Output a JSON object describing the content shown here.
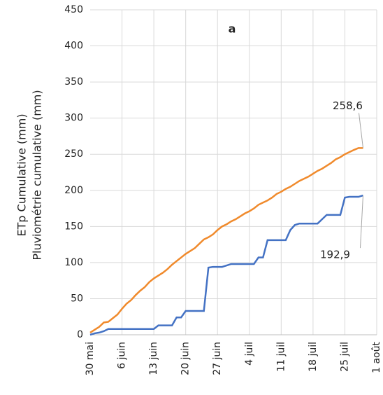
{
  "chart_data": {
    "type": "line",
    "title": "a",
    "ylabel": [
      "ETp Cumulative (mm)",
      "Pluviométrie cumulative (mm)"
    ],
    "categories": [
      "30 mai",
      null,
      null,
      null,
      null,
      null,
      null,
      "6 juin",
      null,
      null,
      null,
      null,
      null,
      null,
      "13 juin",
      null,
      null,
      null,
      null,
      null,
      null,
      "20 juin",
      null,
      null,
      null,
      null,
      null,
      null,
      "27 juin",
      null,
      null,
      null,
      null,
      null,
      null,
      "4 juil",
      null,
      null,
      null,
      null,
      null,
      null,
      "11 juil",
      null,
      null,
      null,
      null,
      null,
      null,
      "18 juil",
      null,
      null,
      null,
      null,
      null,
      null,
      "25 juil",
      null,
      null,
      null,
      null,
      null,
      null,
      "1 août"
    ],
    "series": [
      {
        "color": "#f08a2c",
        "values": [
          3,
          7,
          11,
          17,
          18,
          23,
          28,
          36,
          43,
          48,
          55,
          61,
          66,
          73,
          78,
          82,
          86,
          91,
          97,
          102,
          107,
          112,
          116,
          120,
          126,
          132,
          135,
          139,
          145,
          150,
          153,
          157,
          160,
          164,
          168,
          171,
          175,
          180,
          183,
          186,
          190,
          195,
          198,
          202,
          205,
          209,
          213,
          216,
          219,
          223,
          227,
          230,
          234,
          238,
          243,
          246,
          250,
          253,
          256,
          258.6,
          258.6,
          null,
          null,
          null
        ],
        "value_labels": [
          null,
          null,
          null,
          null,
          null,
          null,
          null,
          null,
          null,
          null,
          null,
          null,
          null,
          null,
          null,
          null,
          null,
          null,
          null,
          null,
          null,
          null,
          null,
          null,
          null,
          null,
          null,
          null,
          null,
          null,
          null,
          null,
          null,
          null,
          null,
          null,
          null,
          null,
          null,
          null,
          null,
          null,
          null,
          null,
          null,
          null,
          null,
          null,
          null,
          null,
          null,
          null,
          null,
          null,
          null,
          null,
          null,
          null,
          null,
          null,
          "258,6",
          null,
          null,
          null
        ]
      },
      {
        "color": "#4472c4",
        "values": [
          0,
          2,
          3,
          5,
          8,
          8,
          8,
          8,
          8,
          8,
          8,
          8,
          8,
          8,
          8,
          13,
          13,
          13,
          13,
          24,
          24,
          33,
          33,
          33,
          33,
          33,
          93,
          94,
          94,
          94,
          96,
          98,
          98,
          98,
          98,
          98,
          98,
          107,
          107,
          131,
          131,
          131,
          131,
          131,
          145,
          152,
          154,
          154,
          154,
          154,
          154,
          160,
          166,
          166,
          166,
          166,
          190,
          191,
          191,
          191,
          192.9,
          null,
          null,
          null
        ],
        "value_labels": [
          null,
          null,
          null,
          null,
          null,
          null,
          null,
          null,
          null,
          null,
          null,
          null,
          null,
          null,
          null,
          null,
          null,
          null,
          null,
          null,
          null,
          null,
          null,
          null,
          null,
          null,
          null,
          null,
          null,
          null,
          null,
          null,
          null,
          null,
          null,
          null,
          null,
          null,
          null,
          null,
          null,
          null,
          null,
          null,
          null,
          null,
          null,
          null,
          null,
          null,
          null,
          null,
          null,
          null,
          null,
          null,
          null,
          null,
          null,
          null,
          "192,9",
          null,
          null,
          null
        ]
      }
    ],
    "ylim": [
      0,
      450
    ],
    "yticks": [
      0,
      50,
      100,
      150,
      200,
      250,
      300,
      350,
      400,
      450
    ],
    "grid": true
  }
}
